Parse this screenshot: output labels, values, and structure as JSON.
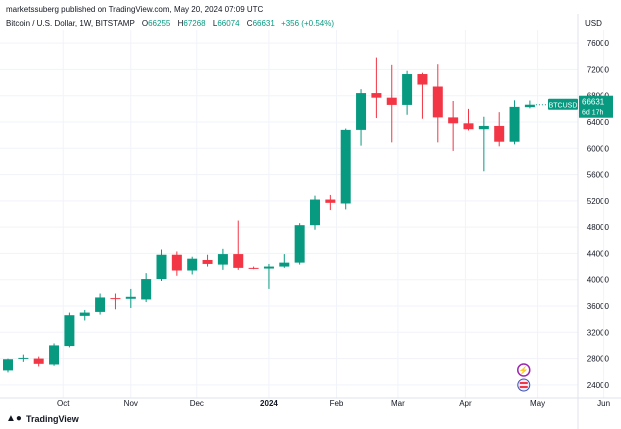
{
  "header": {
    "publisher": "marketssuberg published on TradingView.com, May 20, 2024 07:09 UTC"
  },
  "legend": {
    "symbol": "Bitcoin / U.S. Dollar, 1W, BITSTAMP",
    "open_label": "O",
    "open": "66255",
    "high_label": "H",
    "high": "67268",
    "low_label": "L",
    "low": "66074",
    "close_label": "C",
    "close": "66631",
    "change": "+356 (+0.54%)"
  },
  "currency": "USD",
  "footer": {
    "brand": "TradingView",
    "brand_icon": "tradingview-logo-icon"
  },
  "price_tag": {
    "ticker": "BTCUSD",
    "price": "66631",
    "countdown": "6d 17h"
  },
  "colors": {
    "up": "#089981",
    "down": "#f23645",
    "grid": "#f0f3fa",
    "axis_text": "#131722"
  },
  "chart_data": {
    "type": "candlestick",
    "interval": "1W",
    "y_axis": {
      "min": 22000,
      "max": 78000,
      "ticks": [
        24000,
        28000,
        32000,
        36000,
        40000,
        44000,
        48000,
        52000,
        56000,
        60000,
        64000,
        68000,
        72000,
        76000
      ]
    },
    "x_axis_labels": [
      "Oct",
      "Nov",
      "Dec",
      "2024",
      "Feb",
      "Mar",
      "Apr",
      "May",
      "Jun"
    ],
    "x_label_positions": [
      3.6,
      8.0,
      12.3,
      17.0,
      21.4,
      25.4,
      29.8,
      34.5,
      38.8
    ],
    "grid": true,
    "candles": [
      {
        "o": 26200,
        "h": 28000,
        "l": 25900,
        "c": 27900
      },
      {
        "o": 27950,
        "h": 28600,
        "l": 27500,
        "c": 28100
      },
      {
        "o": 28000,
        "h": 28300,
        "l": 26800,
        "c": 27200
      },
      {
        "o": 27100,
        "h": 30300,
        "l": 26900,
        "c": 30000
      },
      {
        "o": 29900,
        "h": 35000,
        "l": 29700,
        "c": 34600
      },
      {
        "o": 34500,
        "h": 35400,
        "l": 33800,
        "c": 35000
      },
      {
        "o": 35100,
        "h": 37900,
        "l": 34700,
        "c": 37300
      },
      {
        "o": 37200,
        "h": 37900,
        "l": 35500,
        "c": 37100
      },
      {
        "o": 37100,
        "h": 38600,
        "l": 35700,
        "c": 37400
      },
      {
        "o": 37000,
        "h": 41000,
        "l": 36600,
        "c": 40100
      },
      {
        "o": 40100,
        "h": 44600,
        "l": 39800,
        "c": 43800
      },
      {
        "o": 43800,
        "h": 44300,
        "l": 40600,
        "c": 41400
      },
      {
        "o": 41400,
        "h": 43500,
        "l": 40800,
        "c": 43200
      },
      {
        "o": 43000,
        "h": 43800,
        "l": 42000,
        "c": 42400
      },
      {
        "o": 42300,
        "h": 44700,
        "l": 41500,
        "c": 43900
      },
      {
        "o": 43900,
        "h": 49000,
        "l": 41500,
        "c": 41800
      },
      {
        "o": 41800,
        "h": 42000,
        "l": 41600,
        "c": 41700
      },
      {
        "o": 41700,
        "h": 42400,
        "l": 38600,
        "c": 42000
      },
      {
        "o": 42000,
        "h": 43900,
        "l": 41800,
        "c": 42600
      },
      {
        "o": 42600,
        "h": 48600,
        "l": 42300,
        "c": 48300
      },
      {
        "o": 48300,
        "h": 52800,
        "l": 47600,
        "c": 52200
      },
      {
        "o": 52200,
        "h": 52900,
        "l": 50600,
        "c": 51700
      },
      {
        "o": 51600,
        "h": 63000,
        "l": 50700,
        "c": 62800
      },
      {
        "o": 62800,
        "h": 69000,
        "l": 60400,
        "c": 68400
      },
      {
        "o": 68400,
        "h": 73800,
        "l": 64600,
        "c": 67700
      },
      {
        "o": 67700,
        "h": 72700,
        "l": 60900,
        "c": 66600
      },
      {
        "o": 66600,
        "h": 71800,
        "l": 65100,
        "c": 71300
      },
      {
        "o": 71300,
        "h": 71500,
        "l": 64500,
        "c": 69700
      },
      {
        "o": 69400,
        "h": 72800,
        "l": 60900,
        "c": 64700
      },
      {
        "o": 64700,
        "h": 67200,
        "l": 59600,
        "c": 63800
      },
      {
        "o": 63800,
        "h": 66000,
        "l": 62700,
        "c": 62900
      },
      {
        "o": 62900,
        "h": 64800,
        "l": 56500,
        "c": 63400
      },
      {
        "o": 63400,
        "h": 65500,
        "l": 60300,
        "c": 61000
      },
      {
        "o": 61000,
        "h": 67300,
        "l": 60600,
        "c": 66300
      },
      {
        "o": 66255,
        "h": 67268,
        "l": 66074,
        "c": 66631
      }
    ]
  }
}
